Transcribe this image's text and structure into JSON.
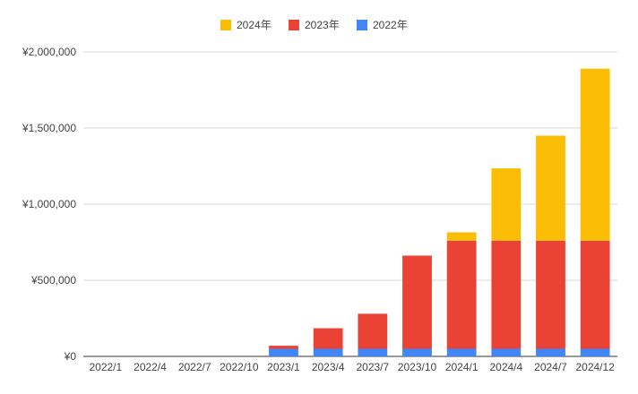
{
  "chart_data": {
    "type": "bar",
    "stacked": true,
    "categories": [
      "2022/1",
      "2022/4",
      "2022/7",
      "2022/10",
      "2023/1",
      "2023/4",
      "2023/7",
      "2023/10",
      "2024/1",
      "2024/4",
      "2024/7",
      "2024/12"
    ],
    "series": [
      {
        "name": "2022年",
        "color": "#4285f4",
        "values": [
          0,
          0,
          0,
          0,
          50000,
          50000,
          50000,
          50000,
          50000,
          50000,
          50000,
          50000
        ]
      },
      {
        "name": "2023年",
        "color": "#ea4335",
        "values": [
          0,
          0,
          0,
          0,
          20000,
          135000,
          230000,
          612000,
          710000,
          710000,
          710000,
          710000
        ]
      },
      {
        "name": "2024年",
        "color": "#fbbc04",
        "values": [
          0,
          0,
          0,
          0,
          0,
          0,
          0,
          0,
          55000,
          475000,
          690000,
          1130000
        ]
      }
    ],
    "legend_order": [
      "2024年",
      "2023年",
      "2022年"
    ],
    "legend_position": "top",
    "ylim": [
      0,
      2000000
    ],
    "yticks": [
      {
        "value": 0,
        "label": "¥0"
      },
      {
        "value": 500000,
        "label": "¥500,000"
      },
      {
        "value": 1000000,
        "label": "¥1,000,000"
      },
      {
        "value": 1500000,
        "label": "¥1,500,000"
      },
      {
        "value": 2000000,
        "label": "¥2,000,000"
      }
    ],
    "grid": true
  }
}
